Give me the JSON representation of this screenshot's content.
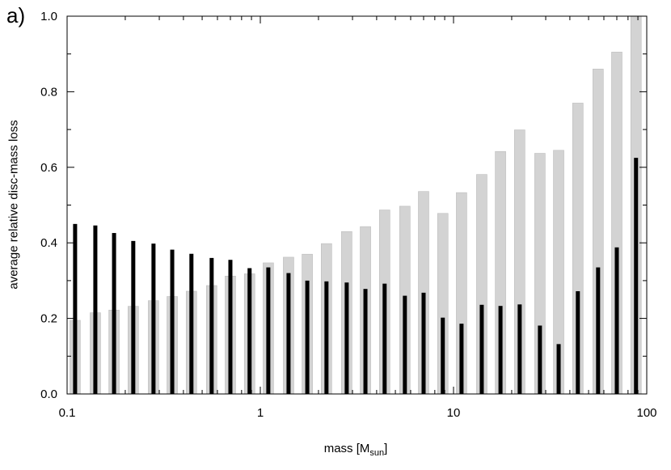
{
  "chart_data": {
    "type": "bar",
    "panel_label": "a)",
    "title": "",
    "xlabel": "mass [M",
    "xlabel_sub": "sun",
    "xlabel_suffix": "]",
    "ylabel": "average relative disc-mass loss",
    "x_scale": "log",
    "xlim": [
      0.1,
      100
    ],
    "ylim": [
      0,
      1.0
    ],
    "x_ticks": [
      0.1,
      1,
      10,
      100
    ],
    "x_tick_labels": [
      "0.1",
      "1",
      "10",
      "100"
    ],
    "y_ticks": [
      0,
      0.2,
      0.4,
      0.6,
      0.8,
      1.0
    ],
    "y_tick_labels": [
      "0.0",
      "0.2",
      "0.4",
      "0.6",
      "0.8",
      "1.0"
    ],
    "grid": false,
    "legend": "none",
    "x": [
      0.11,
      0.14,
      0.175,
      0.22,
      0.28,
      0.35,
      0.44,
      0.56,
      0.7,
      0.88,
      1.1,
      1.4,
      1.75,
      2.2,
      2.8,
      3.5,
      4.4,
      5.6,
      7.0,
      8.8,
      11,
      14,
      17.5,
      22,
      28,
      35,
      44,
      56,
      70,
      88
    ],
    "series": [
      {
        "color": "#d3d3d3",
        "values": [
          0.195,
          0.215,
          0.222,
          0.232,
          0.247,
          0.258,
          0.272,
          0.287,
          0.312,
          0.318,
          0.347,
          0.362,
          0.37,
          0.398,
          0.43,
          0.443,
          0.487,
          0.497,
          0.536,
          0.478,
          0.533,
          0.581,
          0.642,
          0.699,
          0.637,
          0.645,
          0.77,
          0.86,
          0.905,
          1.0
        ]
      },
      {
        "color": "#000000",
        "values": [
          0.45,
          0.446,
          0.426,
          0.405,
          0.398,
          0.382,
          0.371,
          0.36,
          0.355,
          0.333,
          0.335,
          0.32,
          0.3,
          0.298,
          0.295,
          0.278,
          0.292,
          0.26,
          0.268,
          0.202,
          0.186,
          0.236,
          0.233,
          0.237,
          0.181,
          0.132,
          0.272,
          0.335,
          0.388,
          0.625
        ]
      }
    ]
  }
}
